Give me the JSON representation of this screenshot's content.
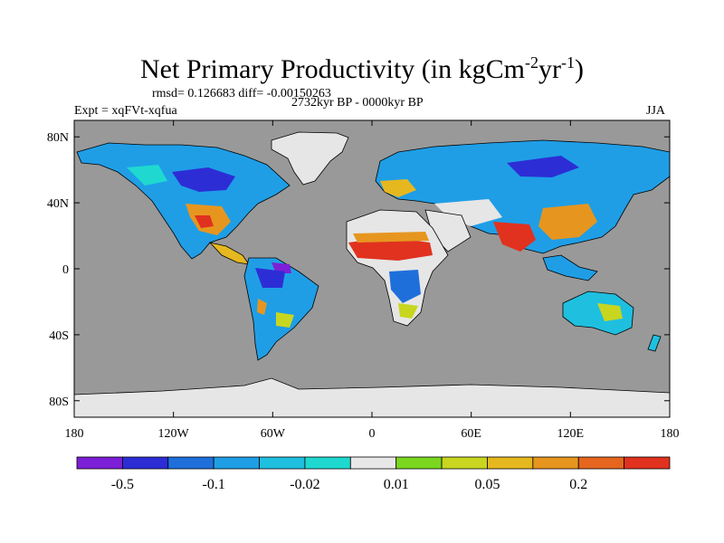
{
  "title": {
    "text": "Net Primary Productivity (in kgCm",
    "exp1": "-2",
    "mid": "yr",
    "exp2": "-1",
    "close": ")"
  },
  "stats_line": "rmsd= 0.126683 diff= -0.00150263",
  "period": "2732kyr BP - 0000kyr BP",
  "experiment": "Expt = xqFVt-xqfua",
  "season": "JJA",
  "colors": {
    "ocean": "#999999",
    "land_neutral": "#e6e6e6",
    "ice": "#e6e6e6",
    "palette": [
      "#7d1fd6",
      "#2d2dd6",
      "#1f6fdb",
      "#1f9ee6",
      "#1fbfdf",
      "#1fd9d0",
      "#e8e8e8",
      "#7ad61f",
      "#c8d61f",
      "#e6b81f",
      "#e6961f",
      "#e6661f",
      "#e0321f"
    ]
  },
  "axes": {
    "y_ticks": [
      {
        "lat": 80,
        "label": "80N"
      },
      {
        "lat": 40,
        "label": "40N"
      },
      {
        "lat": 0,
        "label": "0"
      },
      {
        "lat": -40,
        "label": "40S"
      },
      {
        "lat": -80,
        "label": "80S"
      }
    ],
    "x_ticks": [
      {
        "lon": -180,
        "label": "180"
      },
      {
        "lon": -120,
        "label": "120W"
      },
      {
        "lon": -60,
        "label": "60W"
      },
      {
        "lon": 0,
        "label": "0"
      },
      {
        "lon": 60,
        "label": "60E"
      },
      {
        "lon": 120,
        "label": "120E"
      },
      {
        "lon": 180,
        "label": "180"
      }
    ]
  },
  "legend": {
    "labels": [
      "-0.5",
      "-0.1",
      "-0.02",
      "0.01",
      "0.05",
      "0.2"
    ]
  }
}
